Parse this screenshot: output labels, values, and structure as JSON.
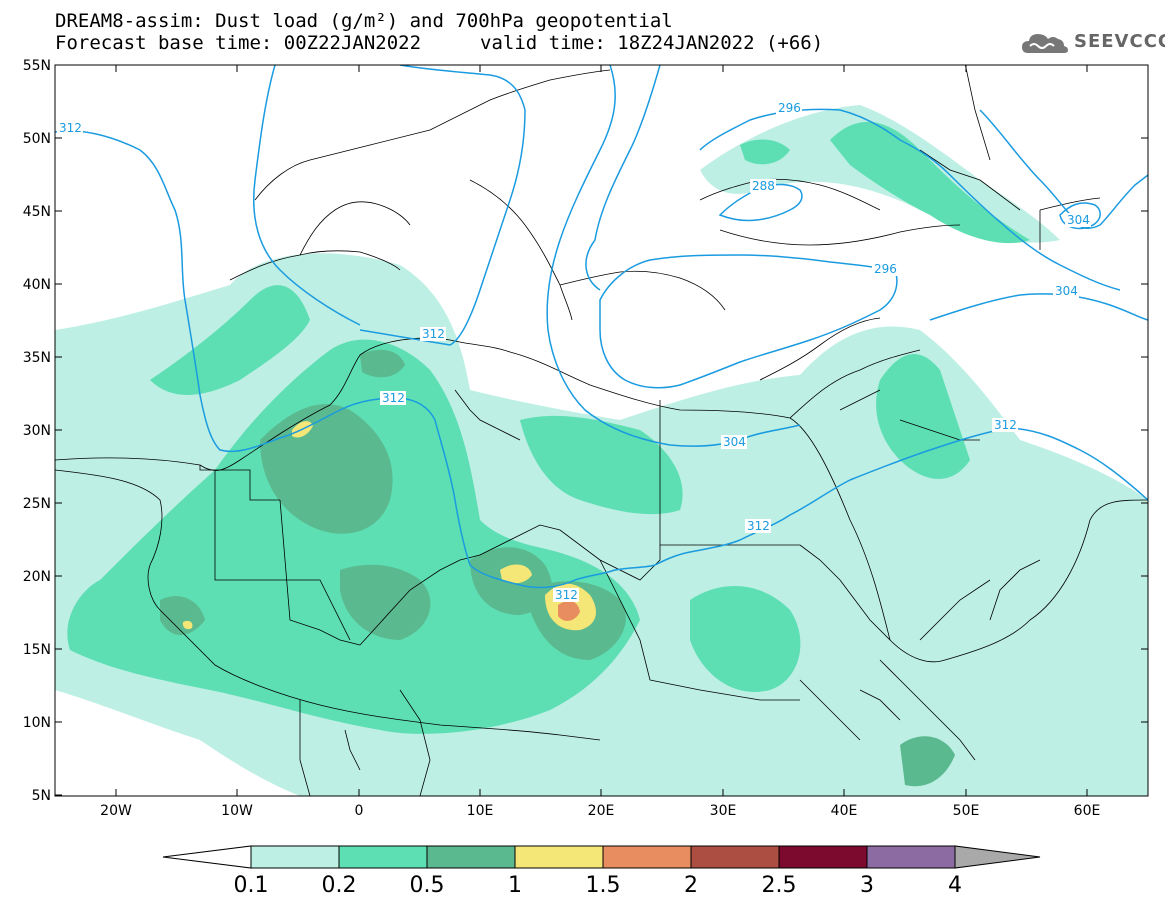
{
  "title": {
    "line1": "DREAM8-assim: Dust load (g/m²) and 700hPa geopotential",
    "line2": "Forecast base time: 00Z22JAN2022",
    "valid": "valid time: 18Z24JAN2022 (+66)"
  },
  "logo": {
    "text": "SEEVCCC",
    "icon": "cloud-icon"
  },
  "map": {
    "lon_range": [
      -25,
      65
    ],
    "lat_range": [
      5,
      55
    ],
    "lat_labels": [
      "55N",
      "50N",
      "45N",
      "40N",
      "35N",
      "30N",
      "25N",
      "20N",
      "15N",
      "10N",
      "5N"
    ],
    "lon_labels": [
      "20W",
      "10W",
      "0",
      "10E",
      "20E",
      "30E",
      "40E",
      "50E",
      "60E"
    ],
    "contour_labels": [
      "312",
      "296",
      "288",
      "304",
      "296",
      "304",
      "312",
      "312",
      "304",
      "312",
      "312",
      "312"
    ],
    "contour_color": "#1a9be0"
  },
  "colorbar": {
    "levels": [
      "0.1",
      "0.2",
      "0.5",
      "1",
      "1.5",
      "2",
      "2.5",
      "3",
      "4"
    ],
    "colors": [
      "#ffffff",
      "#bdefe4",
      "#5ddfb3",
      "#5bb98f",
      "#f5e678",
      "#e88d60",
      "#ac4f42",
      "#7b0a2e",
      "#8b6ba1",
      "#a9a9a9"
    ]
  }
}
